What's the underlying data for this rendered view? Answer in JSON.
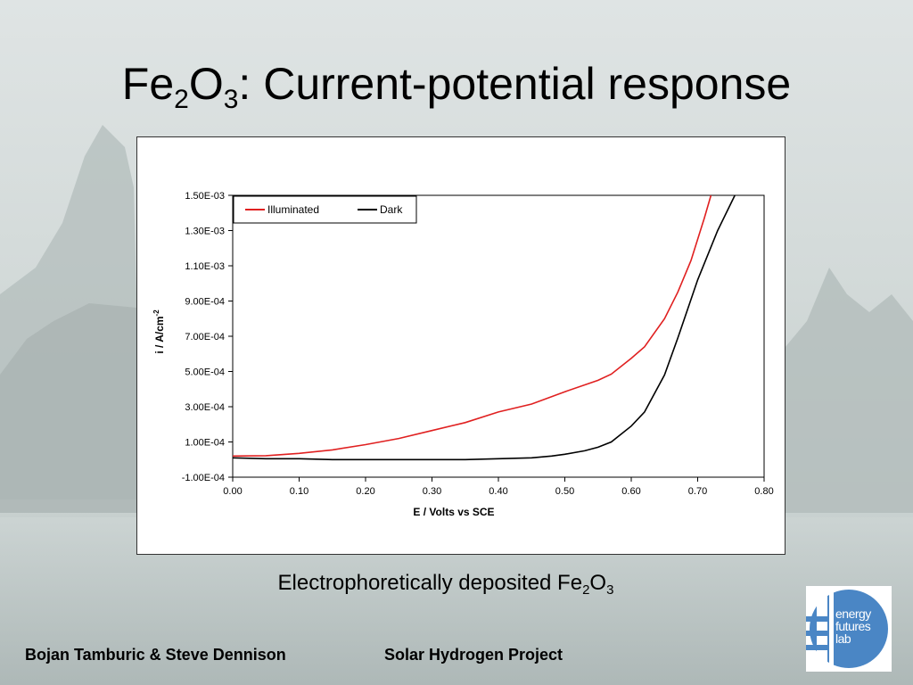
{
  "slide": {
    "title_main": "Fe",
    "title_sub1": "2",
    "title_o": "O",
    "title_sub2": "3",
    "title_rest": ": Current-potential response",
    "caption_main": "Electrophoretically deposited Fe",
    "caption_sub1": "2",
    "caption_o": "O",
    "caption_sub2": "3",
    "footer_left": "Bojan Tamburic & Steve Dennison",
    "footer_center": "Solar Hydrogen Project",
    "logo_lines": [
      "energy",
      "futures",
      "lab"
    ]
  },
  "chart_data": {
    "type": "line",
    "xlabel": "E / Volts vs SCE",
    "ylabel": "i / A/cm",
    "ylabel_sup": "-2",
    "xlim": [
      0.0,
      0.8
    ],
    "ylim": [
      -0.0001,
      0.0015
    ],
    "x_ticks": [
      "0.00",
      "0.10",
      "0.20",
      "0.30",
      "0.40",
      "0.50",
      "0.60",
      "0.70",
      "0.80"
    ],
    "y_ticks": [
      "-1.00E-04",
      "1.00E-04",
      "3.00E-04",
      "5.00E-04",
      "7.00E-04",
      "9.00E-04",
      "1.10E-03",
      "1.30E-03",
      "1.50E-03"
    ],
    "grid": false,
    "legend_position": "top-left",
    "series": [
      {
        "name": "Illuminated",
        "color": "#e02020",
        "points": [
          [
            0.0,
            2e-05
          ],
          [
            0.05,
            2.2e-05
          ],
          [
            0.1,
            3.5e-05
          ],
          [
            0.15,
            5.5e-05
          ],
          [
            0.2,
            8.5e-05
          ],
          [
            0.25,
            0.00012
          ],
          [
            0.3,
            0.000165
          ],
          [
            0.35,
            0.00021
          ],
          [
            0.4,
            0.00027
          ],
          [
            0.45,
            0.000315
          ],
          [
            0.5,
            0.000385
          ],
          [
            0.55,
            0.00045
          ],
          [
            0.57,
            0.000485
          ],
          [
            0.6,
            0.000575
          ],
          [
            0.62,
            0.00064
          ],
          [
            0.65,
            0.0008
          ],
          [
            0.67,
            0.00095
          ],
          [
            0.69,
            0.00113
          ],
          [
            0.71,
            0.00137
          ],
          [
            0.72,
            0.0015
          ]
        ]
      },
      {
        "name": "Dark",
        "color": "#000000",
        "points": [
          [
            0.0,
            1e-05
          ],
          [
            0.05,
            5e-06
          ],
          [
            0.1,
            5e-06
          ],
          [
            0.15,
            0.0
          ],
          [
            0.2,
            0.0
          ],
          [
            0.25,
            0.0
          ],
          [
            0.3,
            0.0
          ],
          [
            0.35,
            0.0
          ],
          [
            0.4,
            5e-06
          ],
          [
            0.45,
            1e-05
          ],
          [
            0.48,
            2e-05
          ],
          [
            0.5,
            3e-05
          ],
          [
            0.53,
            5e-05
          ],
          [
            0.55,
            7e-05
          ],
          [
            0.57,
            0.0001
          ],
          [
            0.6,
            0.00019
          ],
          [
            0.62,
            0.00027
          ],
          [
            0.65,
            0.00048
          ],
          [
            0.67,
            0.00069
          ],
          [
            0.7,
            0.00102
          ],
          [
            0.73,
            0.0013
          ],
          [
            0.756,
            0.0015
          ]
        ]
      }
    ]
  }
}
